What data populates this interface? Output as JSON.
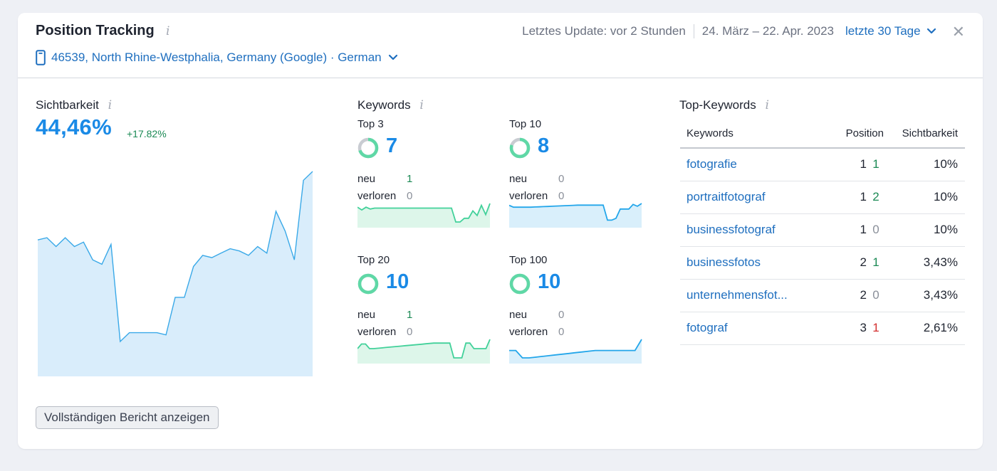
{
  "header": {
    "title": "Position Tracking",
    "info": "i",
    "last_update": "Letztes Update: vor 2 Stunden",
    "date_range": "24. März – 22. Apr. 2023",
    "period_label": "letzte 30 Tage",
    "close": "✕",
    "location": "46539, North Rhine-Westphalia, Germany (Google) · German"
  },
  "visibility": {
    "title": "Sichtbarkeit",
    "info": "i",
    "value": "44,46%",
    "delta": "+17.82%",
    "color": "#1a8ae6",
    "fill": "#d9edfb",
    "series": [
      0.42,
      0.43,
      0.39,
      0.43,
      0.39,
      0.41,
      0.33,
      0.31,
      0.4,
      -0.04,
      0.0,
      0.0,
      0.0,
      0.0,
      -0.01,
      0.16,
      0.16,
      0.3,
      0.35,
      0.34,
      0.36,
      0.38,
      0.37,
      0.35,
      0.39,
      0.36,
      0.55,
      0.46,
      0.33,
      0.69,
      0.73
    ]
  },
  "keywords": {
    "title": "Keywords",
    "info": "i",
    "new_label": "neu",
    "lost_label": "verloren",
    "blocks": [
      {
        "label": "Top 3",
        "count": "7",
        "new": "1",
        "lost": "0",
        "ratio": 0.7,
        "color": "#42d19a",
        "fill": "#ddf6ea",
        "series": [
          0.8,
          0.65,
          0.8,
          0.7,
          0.75,
          0.75,
          0.75,
          0.75,
          0.75,
          0.75,
          0.75,
          0.75,
          0.75,
          0.75,
          0.75,
          0.75,
          0.75,
          0.75,
          0.75,
          0.75,
          0.75,
          0.75,
          0.75,
          0.0,
          0.0,
          0.2,
          0.2,
          0.6,
          0.35,
          0.9,
          0.4,
          1.0
        ]
      },
      {
        "label": "Top 10",
        "count": "8",
        "new": "0",
        "lost": "0",
        "ratio": 0.8,
        "color": "#23a6ea",
        "fill": "#d9effb",
        "series": [
          0.9,
          0.8,
          0.8,
          0.8,
          0.8,
          0.8,
          0.81,
          0.82,
          0.83,
          0.84,
          0.85,
          0.86,
          0.87,
          0.88,
          0.89,
          0.9,
          0.91,
          0.91,
          0.91,
          0.91,
          0.91,
          0.91,
          0.91,
          0.1,
          0.1,
          0.2,
          0.7,
          0.7,
          0.7,
          0.95,
          0.85,
          1.0
        ]
      },
      {
        "label": "Top 20",
        "count": "10",
        "new": "1",
        "lost": "0",
        "ratio": 1.0,
        "color": "#42d19a",
        "fill": "#ddf6ea",
        "series": [
          0.5,
          0.75,
          0.75,
          0.5,
          0.5,
          0.52,
          0.54,
          0.56,
          0.58,
          0.6,
          0.62,
          0.64,
          0.66,
          0.68,
          0.7,
          0.72,
          0.74,
          0.76,
          0.78,
          0.8,
          0.8,
          0.8,
          0.8,
          0.8,
          0.0,
          0.0,
          0.0,
          0.8,
          0.8,
          0.5,
          0.5,
          0.5,
          0.5,
          1.0
        ]
      },
      {
        "label": "Top 100",
        "count": "10",
        "new": "0",
        "lost": "0",
        "ratio": 1.0,
        "color": "#23a6ea",
        "fill": "#d9effb",
        "series": [
          0.4,
          0.4,
          0.0,
          0.0,
          0.04,
          0.08,
          0.12,
          0.16,
          0.2,
          0.24,
          0.28,
          0.32,
          0.36,
          0.4,
          0.4,
          0.4,
          0.4,
          0.4,
          0.4,
          0.4,
          1.0
        ]
      }
    ]
  },
  "top_keywords": {
    "title": "Top-Keywords",
    "info": "i",
    "columns": [
      "Keywords",
      "Position",
      "Sichtbarkeit"
    ],
    "rows": [
      {
        "keyword": "fotografie",
        "position": "1",
        "change": "1",
        "change_type": "up",
        "visibility": "10%"
      },
      {
        "keyword": "portraitfotograf",
        "position": "1",
        "change": "2",
        "change_type": "up",
        "visibility": "10%"
      },
      {
        "keyword": "businessfotograf",
        "position": "1",
        "change": "0",
        "change_type": "zero",
        "visibility": "10%"
      },
      {
        "keyword": "businessfotos",
        "position": "2",
        "change": "1",
        "change_type": "up",
        "visibility": "3,43%"
      },
      {
        "keyword": "unternehmensfot...",
        "position": "2",
        "change": "0",
        "change_type": "zero",
        "visibility": "3,43%"
      },
      {
        "keyword": "fotograf",
        "position": "3",
        "change": "1",
        "change_type": "down",
        "visibility": "2,61%"
      }
    ]
  },
  "report_button": "Vollständigen Bericht anzeigen"
}
